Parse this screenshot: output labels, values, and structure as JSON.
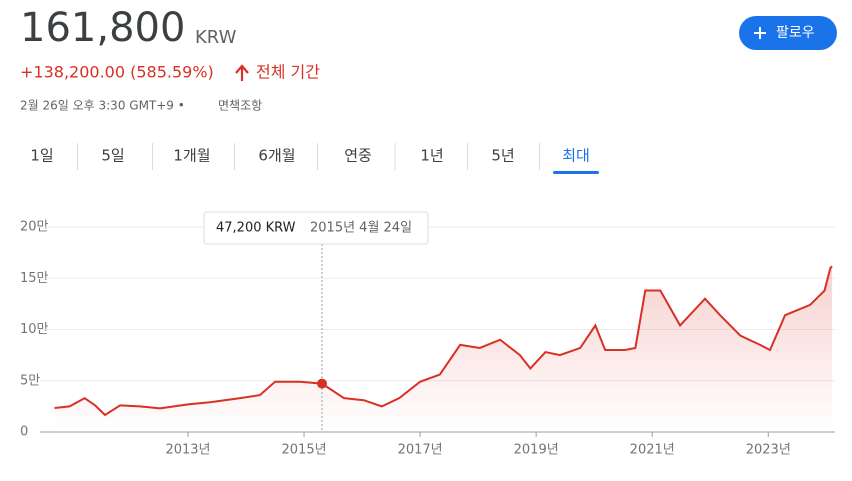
{
  "header": {
    "price": "161,800",
    "currency": "KRW",
    "change": "+138,200.00 (585.59%)",
    "period": "전체 기간",
    "timestamp": "2월 26일 오후 3:30 GMT+9 •",
    "disclaimer": "면책조항",
    "follow": "팔로우"
  },
  "tabs": [
    "1일",
    "5일",
    "1개월",
    "6개월",
    "연중",
    "1년",
    "5년",
    "최대"
  ],
  "active_tab": 7,
  "chart_data": {
    "type": "line",
    "color": "#d93025",
    "grid": true,
    "x": [
      2010.7,
      2010.96,
      2011.22,
      2011.4,
      2011.57,
      2011.83,
      2012.17,
      2012.52,
      2013.0,
      2013.38,
      2013.9,
      2014.24,
      2014.5,
      2014.93,
      2015.31,
      2015.69,
      2016.03,
      2016.34,
      2016.64,
      2017.0,
      2017.34,
      2017.69,
      2018.03,
      2018.38,
      2018.72,
      2018.9,
      2019.16,
      2019.41,
      2019.76,
      2020.02,
      2020.19,
      2020.53,
      2020.71,
      2020.88,
      2021.14,
      2021.48,
      2021.91,
      2022.17,
      2022.52,
      2022.86,
      2023.03,
      2023.29,
      2023.72,
      2023.97,
      2024.07,
      2024.1
    ],
    "values": [
      23400,
      25000,
      33000,
      26000,
      16600,
      26000,
      25000,
      23000,
      27000,
      29000,
      33000,
      36000,
      49000,
      49000,
      47200,
      33000,
      31000,
      25000,
      33000,
      49000,
      56000,
      85000,
      82000,
      90000,
      75000,
      62000,
      78000,
      75000,
      82000,
      104000,
      80000,
      80000,
      82000,
      138000,
      138000,
      104000,
      130000,
      114000,
      94000,
      85000,
      80000,
      114000,
      124000,
      138000,
      160000,
      161800
    ],
    "xlim": [
      2010.45,
      2024.15
    ],
    "xticks": [
      {
        "value": 2013,
        "label": "2013년"
      },
      {
        "value": 2015,
        "label": "2015년"
      },
      {
        "value": 2017,
        "label": "2017년"
      },
      {
        "value": 2019,
        "label": "2019년"
      },
      {
        "value": 2021,
        "label": "2021년"
      },
      {
        "value": 2023,
        "label": "2023년"
      }
    ],
    "ylim": [
      0,
      200000
    ],
    "yticks": [
      0,
      {
        "value": 50000,
        "label": "5만"
      },
      {
        "value": 100000,
        "label": "10만"
      },
      {
        "value": 150000,
        "label": "15만"
      },
      {
        "value": 200000,
        "label": "20만"
      }
    ],
    "tooltip": {
      "x": 2015.31,
      "value": 47200,
      "label": "47,200 KRW",
      "date": "2015년 4월 24일"
    }
  }
}
